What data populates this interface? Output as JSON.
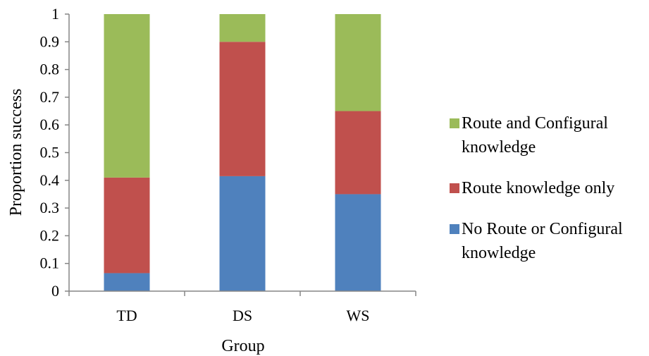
{
  "chart_data": {
    "type": "bar",
    "stacked": true,
    "categories": [
      "TD",
      "DS",
      "WS"
    ],
    "series": [
      {
        "name": "No Route or Configural knowledge",
        "color": "#4f81bd",
        "values": [
          0.065,
          0.415,
          0.35
        ]
      },
      {
        "name": "Route knowledge only",
        "color": "#c0504d",
        "values": [
          0.345,
          0.485,
          0.3
        ]
      },
      {
        "name": "Route  and Configural knowledge",
        "color": "#9bbb59",
        "values": [
          0.59,
          0.1,
          0.35
        ]
      }
    ],
    "xlabel": "Group",
    "ylabel": "Proportion success",
    "ylim": [
      0,
      1
    ],
    "yticks": [
      "0",
      "0.1",
      "0.2",
      "0.3",
      "0.4",
      "0.5",
      "0.6",
      "0.7",
      "0.8",
      "0.9",
      "1"
    ],
    "grid": false,
    "legend_position": "right"
  },
  "legend": {
    "items": [
      {
        "label_line1": "Route  and Configural",
        "label_line2": "knowledge",
        "color": "#9bbb59"
      },
      {
        "label_line1": "Route knowledge only",
        "label_line2": "",
        "color": "#c0504d"
      },
      {
        "label_line1": "No Route or Configural",
        "label_line2": "knowledge",
        "color": "#4f81bd"
      }
    ]
  }
}
